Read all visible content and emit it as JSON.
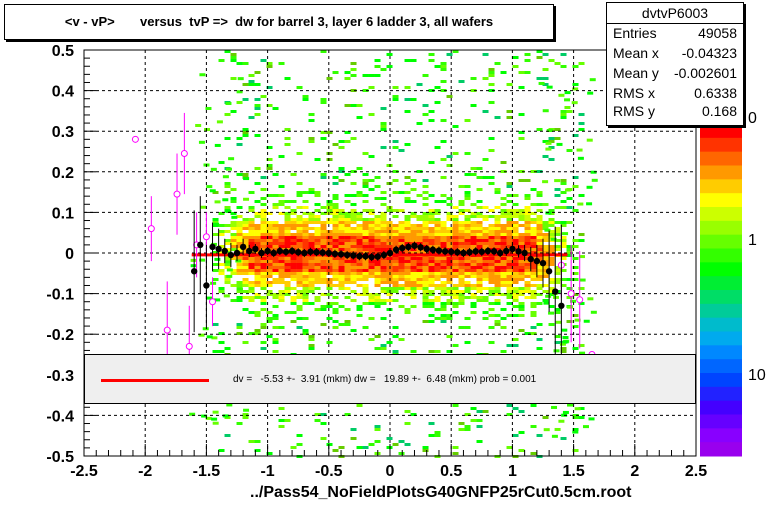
{
  "chart_data": {
    "type": "scatter",
    "title": "<v - vP>       versus  tvP =>  dw for barrel 3, layer 6 ladder 3, all wafers",
    "xlabel": "../Pass54_NoFieldPlotsG40GNFP25rCut0.5cm.root",
    "ylabel": "",
    "xlim": [
      -2.5,
      2.5
    ],
    "ylim": [
      -0.5,
      0.5
    ],
    "x_ticks": [
      "-2.5",
      "-2",
      "-1.5",
      "-1",
      "-0.5",
      "0",
      "0.5",
      "1",
      "1.5",
      "2",
      "2.5"
    ],
    "y_ticks": [
      "-0.5",
      "-0.4",
      "-0.3",
      "-0.2",
      "-0.1",
      "0",
      "0.1",
      "0.2",
      "0.3",
      "0.4",
      "0.5"
    ],
    "colorbar_labels": [
      "0",
      "1",
      "10"
    ],
    "grid": true,
    "fit_line": {
      "x": [
        -1.62,
        1.45
      ],
      "y": [
        -0.0045,
        -0.0045
      ],
      "color": "#ff0000"
    },
    "profile_black": {
      "x": [
        -1.6,
        -1.55,
        -1.5,
        -1.45,
        -1.4,
        -1.35,
        -1.3,
        -1.25,
        -1.2,
        -1.15,
        -1.1,
        -1.05,
        -1.0,
        -0.95,
        -0.9,
        -0.85,
        -0.8,
        -0.75,
        -0.7,
        -0.65,
        -0.6,
        -0.55,
        -0.5,
        -0.45,
        -0.4,
        -0.35,
        -0.3,
        -0.25,
        -0.2,
        -0.15,
        -0.1,
        -0.05,
        0.0,
        0.05,
        0.1,
        0.15,
        0.2,
        0.25,
        0.3,
        0.35,
        0.4,
        0.45,
        0.5,
        0.55,
        0.6,
        0.65,
        0.7,
        0.75,
        0.8,
        0.85,
        0.9,
        0.95,
        1.0,
        1.05,
        1.1,
        1.15,
        1.2,
        1.25,
        1.3,
        1.35,
        1.4
      ],
      "y": [
        -0.045,
        0.02,
        -0.08,
        0.015,
        0.01,
        0.005,
        -0.005,
        0.0,
        0.015,
        0.005,
        0.01,
        0.0,
        0.005,
        0.0,
        0.005,
        0.003,
        0.005,
        0.002,
        0.0,
        0.003,
        0.002,
        0.001,
        0.0,
        -0.002,
        -0.003,
        -0.005,
        -0.006,
        -0.008,
        -0.008,
        -0.01,
        -0.009,
        -0.005,
        0.0,
        0.008,
        0.012,
        0.015,
        0.018,
        0.014,
        0.01,
        0.008,
        0.006,
        0.004,
        0.003,
        0.002,
        0.0,
        0.002,
        0.004,
        0.003,
        0.005,
        0.004,
        0.0,
        0.005,
        0.01,
        0.004,
        0.0,
        -0.015,
        -0.02,
        -0.025,
        -0.045,
        -0.095,
        -0.13
      ],
      "yerr": [
        0.15,
        0.12,
        0.1,
        0.06,
        0.05,
        0.03,
        0.03,
        0.02,
        0.02,
        0.015,
        0.012,
        0.012,
        0.01,
        0.01,
        0.01,
        0.01,
        0.01,
        0.01,
        0.01,
        0.01,
        0.01,
        0.01,
        0.01,
        0.01,
        0.01,
        0.01,
        0.01,
        0.01,
        0.01,
        0.01,
        0.01,
        0.01,
        0.01,
        0.01,
        0.01,
        0.01,
        0.01,
        0.01,
        0.01,
        0.01,
        0.01,
        0.01,
        0.01,
        0.01,
        0.01,
        0.01,
        0.01,
        0.01,
        0.01,
        0.01,
        0.01,
        0.012,
        0.012,
        0.015,
        0.02,
        0.03,
        0.04,
        0.06,
        0.1,
        0.16,
        0.2
      ]
    },
    "profile_magenta": {
      "x": [
        -2.08,
        -1.95,
        -1.82,
        -1.74,
        -1.68,
        -1.64,
        -1.58,
        -1.5,
        -1.45,
        1.4,
        1.48,
        1.55,
        1.65
      ],
      "y": [
        0.28,
        0.06,
        -0.19,
        0.145,
        0.245,
        -0.23,
        0.02,
        0.04,
        -0.12,
        -0.03,
        -0.1,
        -0.115,
        -0.25
      ],
      "yerr": [
        0.0,
        0.08,
        0.12,
        0.1,
        0.1,
        0.1,
        0.08,
        0.06,
        0.06,
        0.08,
        0.12,
        0.12,
        0.0
      ]
    }
  },
  "stats": {
    "name": "dvtvP6003",
    "rows": [
      {
        "label": "Entries",
        "value": "49058"
      },
      {
        "label": "Mean x",
        "value": "-0.04323"
      },
      {
        "label": "Mean y",
        "value": "-0.002601"
      },
      {
        "label": "RMS x",
        "value": "0.6338"
      },
      {
        "label": "RMS y",
        "value": "0.168"
      }
    ]
  },
  "legend": {
    "text": "dv =   -5.53 +-  3.91 (mkm) dw =   19.89 +-  6.48 (mkm) prob = 0.001"
  }
}
